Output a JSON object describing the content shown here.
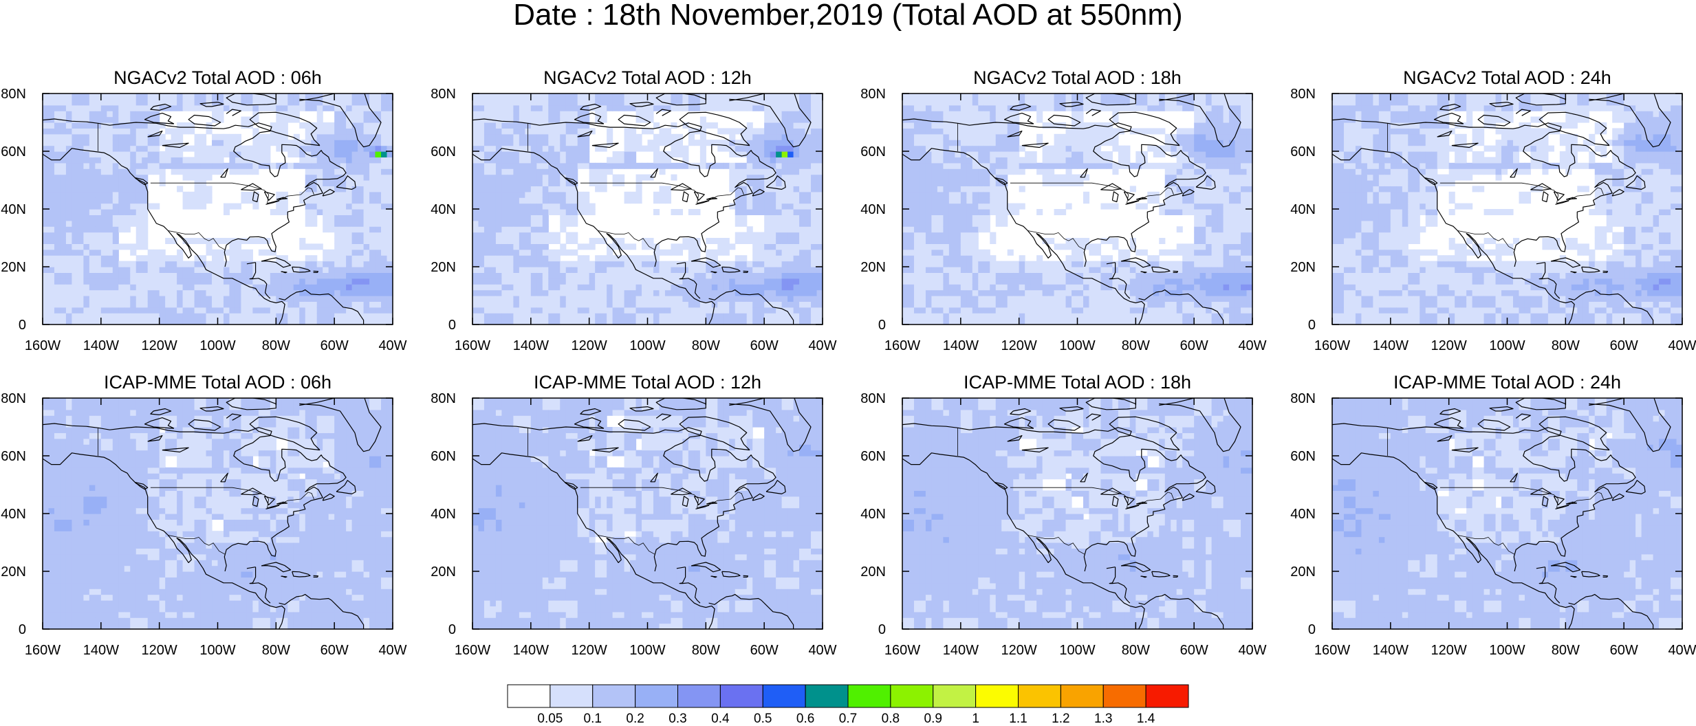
{
  "title": "Date : 18th November,2019 (Total AOD at 550nm)",
  "grid": {
    "rows": 2,
    "cols": 4
  },
  "map": {
    "lon_range": [
      -160,
      -40
    ],
    "lat_range": [
      0,
      80
    ],
    "lon_ticks": [
      "160W",
      "140W",
      "120W",
      "100W",
      "80W",
      "60W",
      "40W"
    ],
    "lat_ticks": [
      "0",
      "20N",
      "40N",
      "60N",
      "80N"
    ],
    "land_color": "#ffffff",
    "coast_color": "#000000"
  },
  "panels": [
    {
      "id": "ngac-06",
      "title": "NGACv2 Total AOD : 06h",
      "model": "ngac",
      "hour": 6
    },
    {
      "id": "ngac-12",
      "title": "NGACv2 Total AOD : 12h",
      "model": "ngac",
      "hour": 12
    },
    {
      "id": "ngac-18",
      "title": "NGACv2 Total AOD : 18h",
      "model": "ngac",
      "hour": 18
    },
    {
      "id": "ngac-24",
      "title": "NGACv2 Total AOD : 24h",
      "model": "ngac",
      "hour": 24
    },
    {
      "id": "icap-06",
      "title": "ICAP-MME Total AOD : 06h",
      "model": "icap",
      "hour": 6
    },
    {
      "id": "icap-12",
      "title": "ICAP-MME Total AOD : 12h",
      "model": "icap",
      "hour": 12
    },
    {
      "id": "icap-18",
      "title": "ICAP-MME Total AOD : 18h",
      "model": "icap",
      "hour": 18
    },
    {
      "id": "icap-24",
      "title": "ICAP-MME Total AOD : 24h",
      "model": "icap",
      "hour": 24
    }
  ],
  "colorbar": {
    "labels": [
      "0.05",
      "0.1",
      "0.2",
      "0.3",
      "0.4",
      "0.5",
      "0.6",
      "0.7",
      "0.8",
      "0.9",
      "1",
      "1.1",
      "1.2",
      "1.3",
      "1.4"
    ],
    "colors": [
      "#ffffff",
      "#d6e0fc",
      "#b3c3f7",
      "#98b0f6",
      "#8495f3",
      "#6a71f1",
      "#1f5ef6",
      "#00918c",
      "#50f000",
      "#8cf200",
      "#c2f244",
      "#fcfc00",
      "#fbc300",
      "#f9a300",
      "#f76c00",
      "#f71b00"
    ]
  }
}
